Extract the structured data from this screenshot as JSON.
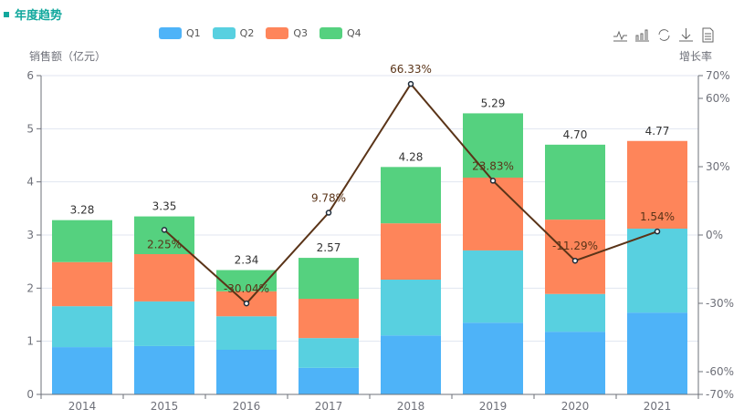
{
  "title": "年度趋势",
  "toolbox": [
    "line-view-icon",
    "bar-view-icon",
    "restore-icon",
    "download-icon",
    "data-view-icon"
  ],
  "chart_data": {
    "type": "bar+line",
    "categories": [
      "2014",
      "2015",
      "2016",
      "2017",
      "2018",
      "2019",
      "2020",
      "2021"
    ],
    "series": [
      {
        "name": "Q1",
        "type": "bar",
        "stack": "total",
        "color": "#4eb3f8",
        "values": [
          0.89,
          0.91,
          0.84,
          0.5,
          1.11,
          1.35,
          1.18,
          1.54
        ]
      },
      {
        "name": "Q2",
        "type": "bar",
        "stack": "total",
        "color": "#58d0e0",
        "values": [
          0.77,
          0.84,
          0.63,
          0.56,
          1.05,
          1.36,
          0.71,
          1.58
        ]
      },
      {
        "name": "Q3",
        "type": "bar",
        "stack": "total",
        "color": "#fe855a",
        "values": [
          0.83,
          0.89,
          0.47,
          0.74,
          1.06,
          1.37,
          1.4,
          1.65
        ]
      },
      {
        "name": "Q4",
        "type": "bar",
        "stack": "total",
        "color": "#55d17f",
        "values": [
          0.79,
          0.71,
          0.4,
          0.77,
          1.06,
          1.21,
          1.41,
          0
        ]
      }
    ],
    "totals": [
      "3.28",
      "3.35",
      "2.34",
      "2.57",
      "4.28",
      "5.29",
      "4.70",
      "4.77"
    ],
    "growth": {
      "color": "#5a3418",
      "values": [
        null,
        2.25,
        -30.04,
        9.78,
        66.33,
        23.83,
        -11.29,
        1.54
      ],
      "labels": [
        "",
        "2.25%",
        "-30.04%",
        "9.78%",
        "66.33%",
        "23.83%",
        "-11.29%",
        "1.54%"
      ]
    },
    "ylabel": "销售额（亿元）",
    "y2label": "增长率",
    "ylim": [
      0,
      6
    ],
    "yticks": [
      "0",
      "1",
      "2",
      "3",
      "4",
      "5",
      "6"
    ],
    "y2lim": [
      -70,
      70
    ],
    "y2ticks": [
      {
        "v": 70,
        "t": "70%"
      },
      {
        "v": 60,
        "t": "60%"
      },
      {
        "v": 30,
        "t": "30%"
      },
      {
        "v": 0,
        "t": "0%"
      },
      {
        "v": -30,
        "t": "-30%"
      },
      {
        "v": -60,
        "t": "-60%"
      },
      {
        "v": -70,
        "t": "-70%"
      }
    ],
    "grid": true,
    "legend": "top"
  }
}
